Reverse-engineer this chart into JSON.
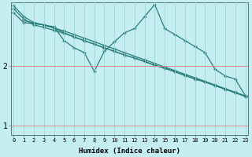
{
  "xlabel": "Humidex (Indice chaleur)",
  "bg_color": "#c5eef0",
  "line_color": "#2a7d7d",
  "x_ticks": [
    0,
    1,
    2,
    3,
    4,
    5,
    6,
    7,
    8,
    9,
    10,
    11,
    12,
    13,
    14,
    15,
    16,
    17,
    18,
    19,
    20,
    21,
    22,
    23
  ],
  "y_ticks": [
    1,
    2
  ],
  "ylim": [
    0.85,
    3.05
  ],
  "xlim": [
    -0.3,
    23.3
  ],
  "line1_x": [
    0,
    1,
    2,
    3,
    4,
    5,
    6,
    7,
    8,
    9,
    10,
    11,
    12,
    13,
    14,
    15,
    16,
    17,
    18,
    19,
    20,
    21,
    22,
    23
  ],
  "line1_y": [
    3.0,
    2.82,
    2.72,
    2.68,
    2.63,
    2.58,
    2.52,
    2.46,
    2.4,
    2.34,
    2.28,
    2.22,
    2.16,
    2.1,
    2.04,
    1.98,
    1.92,
    1.86,
    1.8,
    1.74,
    1.68,
    1.62,
    1.56,
    1.5
  ],
  "line2_x": [
    0,
    1,
    2,
    3,
    4,
    5,
    6,
    7,
    8,
    9,
    10,
    11,
    12,
    13,
    14,
    15,
    16,
    17,
    18,
    19,
    20,
    21,
    22,
    23
  ],
  "line2_y": [
    2.95,
    2.78,
    2.68,
    2.64,
    2.59,
    2.54,
    2.48,
    2.42,
    2.36,
    2.3,
    2.24,
    2.18,
    2.13,
    2.07,
    2.01,
    1.96,
    1.9,
    1.84,
    1.78,
    1.73,
    1.67,
    1.61,
    1.55,
    1.49
  ],
  "line3_x": [
    1,
    3,
    4,
    5,
    6,
    7,
    8,
    9,
    10,
    11,
    12,
    13,
    14,
    15,
    16,
    17,
    18,
    19,
    20,
    21,
    22,
    23
  ],
  "line3_y": [
    2.75,
    2.68,
    2.65,
    2.42,
    2.3,
    2.22,
    1.91,
    2.24,
    2.4,
    2.55,
    2.62,
    2.82,
    3.02,
    2.62,
    2.52,
    2.42,
    2.32,
    2.22,
    1.94,
    1.83,
    1.78,
    1.5
  ],
  "line4_x": [
    0,
    1,
    3,
    4,
    5,
    6,
    7,
    8,
    9,
    10,
    11,
    12,
    13,
    14,
    15,
    16,
    17,
    18,
    19,
    20,
    21,
    22,
    23
  ],
  "line4_y": [
    2.88,
    2.72,
    2.68,
    2.63,
    2.55,
    2.48,
    2.42,
    2.36,
    2.3,
    2.24,
    2.18,
    2.13,
    2.07,
    2.01,
    1.96,
    1.9,
    1.84,
    1.78,
    1.73,
    1.67,
    1.61,
    1.55,
    1.49
  ]
}
